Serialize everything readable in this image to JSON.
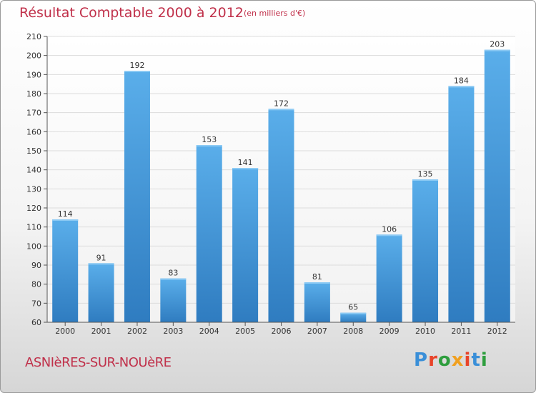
{
  "header": {
    "title": "Résultat Comptable 2000 à 2012",
    "subtitle": "(en milliers d'€)"
  },
  "footer": {
    "commune": "ASNIèRES-SUR-NOUèRE",
    "logo_text": "Proxiti"
  },
  "colors": {
    "title": "#c0304a",
    "bar_top": "#5aaeea",
    "bar_bottom": "#2f7cc0",
    "logo_letters": [
      "#3a8fd8",
      "#e8442a",
      "#2e9e3e",
      "#f0a020",
      "#e8442a",
      "#3a8fd8",
      "#2e9e3e"
    ]
  },
  "chart_data": {
    "type": "bar",
    "title": "Résultat Comptable 2000 à 2012",
    "subtitle": "(en milliers d'€)",
    "xlabel": "",
    "ylabel": "",
    "categories": [
      "2000",
      "2001",
      "2002",
      "2003",
      "2004",
      "2005",
      "2006",
      "2007",
      "2008",
      "2009",
      "2010",
      "2011",
      "2012"
    ],
    "values": [
      114,
      91,
      192,
      83,
      153,
      141,
      172,
      81,
      65,
      106,
      135,
      184,
      203
    ],
    "ylim": [
      60,
      210
    ],
    "yticks": [
      60,
      70,
      80,
      90,
      100,
      110,
      120,
      130,
      140,
      150,
      160,
      170,
      180,
      190,
      200,
      210
    ],
    "grid": true
  }
}
